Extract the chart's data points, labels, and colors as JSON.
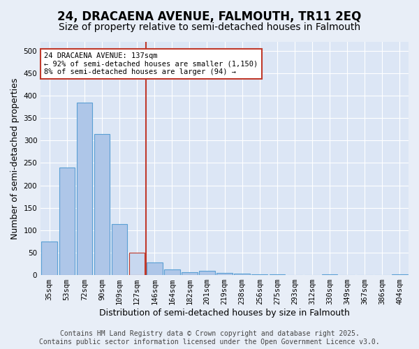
{
  "title1": "24, DRACAENA AVENUE, FALMOUTH, TR11 2EQ",
  "title2": "Size of property relative to semi-detached houses in Falmouth",
  "xlabel": "Distribution of semi-detached houses by size in Falmouth",
  "ylabel": "Number of semi-detached properties",
  "categories": [
    "35sqm",
    "53sqm",
    "72sqm",
    "90sqm",
    "109sqm",
    "127sqm",
    "146sqm",
    "164sqm",
    "182sqm",
    "201sqm",
    "219sqm",
    "238sqm",
    "256sqm",
    "275sqm",
    "293sqm",
    "312sqm",
    "330sqm",
    "349sqm",
    "367sqm",
    "386sqm",
    "404sqm"
  ],
  "values": [
    75,
    240,
    385,
    315,
    113,
    50,
    28,
    13,
    7,
    9,
    5,
    4,
    2,
    1,
    0,
    0,
    1,
    0,
    0,
    0,
    1
  ],
  "bar_color": "#aec6e8",
  "bar_edge_color": "#5a9fd4",
  "highlight_bar_index": 5,
  "highlight_bar_color": "#c8d8f0",
  "highlight_bar_edge_color": "#c0392b",
  "vline_color": "#c0392b",
  "annotation_line1": "24 DRACAENA AVENUE: 137sqm",
  "annotation_line2": "← 92% of semi-detached houses are smaller (1,150)",
  "annotation_line3": "8% of semi-detached houses are larger (94) →",
  "annotation_box_color": "#ffffff",
  "annotation_box_edge_color": "#c0392b",
  "ylim": [
    0,
    520
  ],
  "yticks": [
    0,
    50,
    100,
    150,
    200,
    250,
    300,
    350,
    400,
    450,
    500
  ],
  "background_color": "#e8eef7",
  "plot_background_color": "#dce6f5",
  "footer_text": "Contains HM Land Registry data © Crown copyright and database right 2025.\nContains public sector information licensed under the Open Government Licence v3.0.",
  "title1_fontsize": 12,
  "title2_fontsize": 10,
  "xlabel_fontsize": 9,
  "ylabel_fontsize": 9,
  "tick_fontsize": 7.5,
  "footer_fontsize": 7
}
